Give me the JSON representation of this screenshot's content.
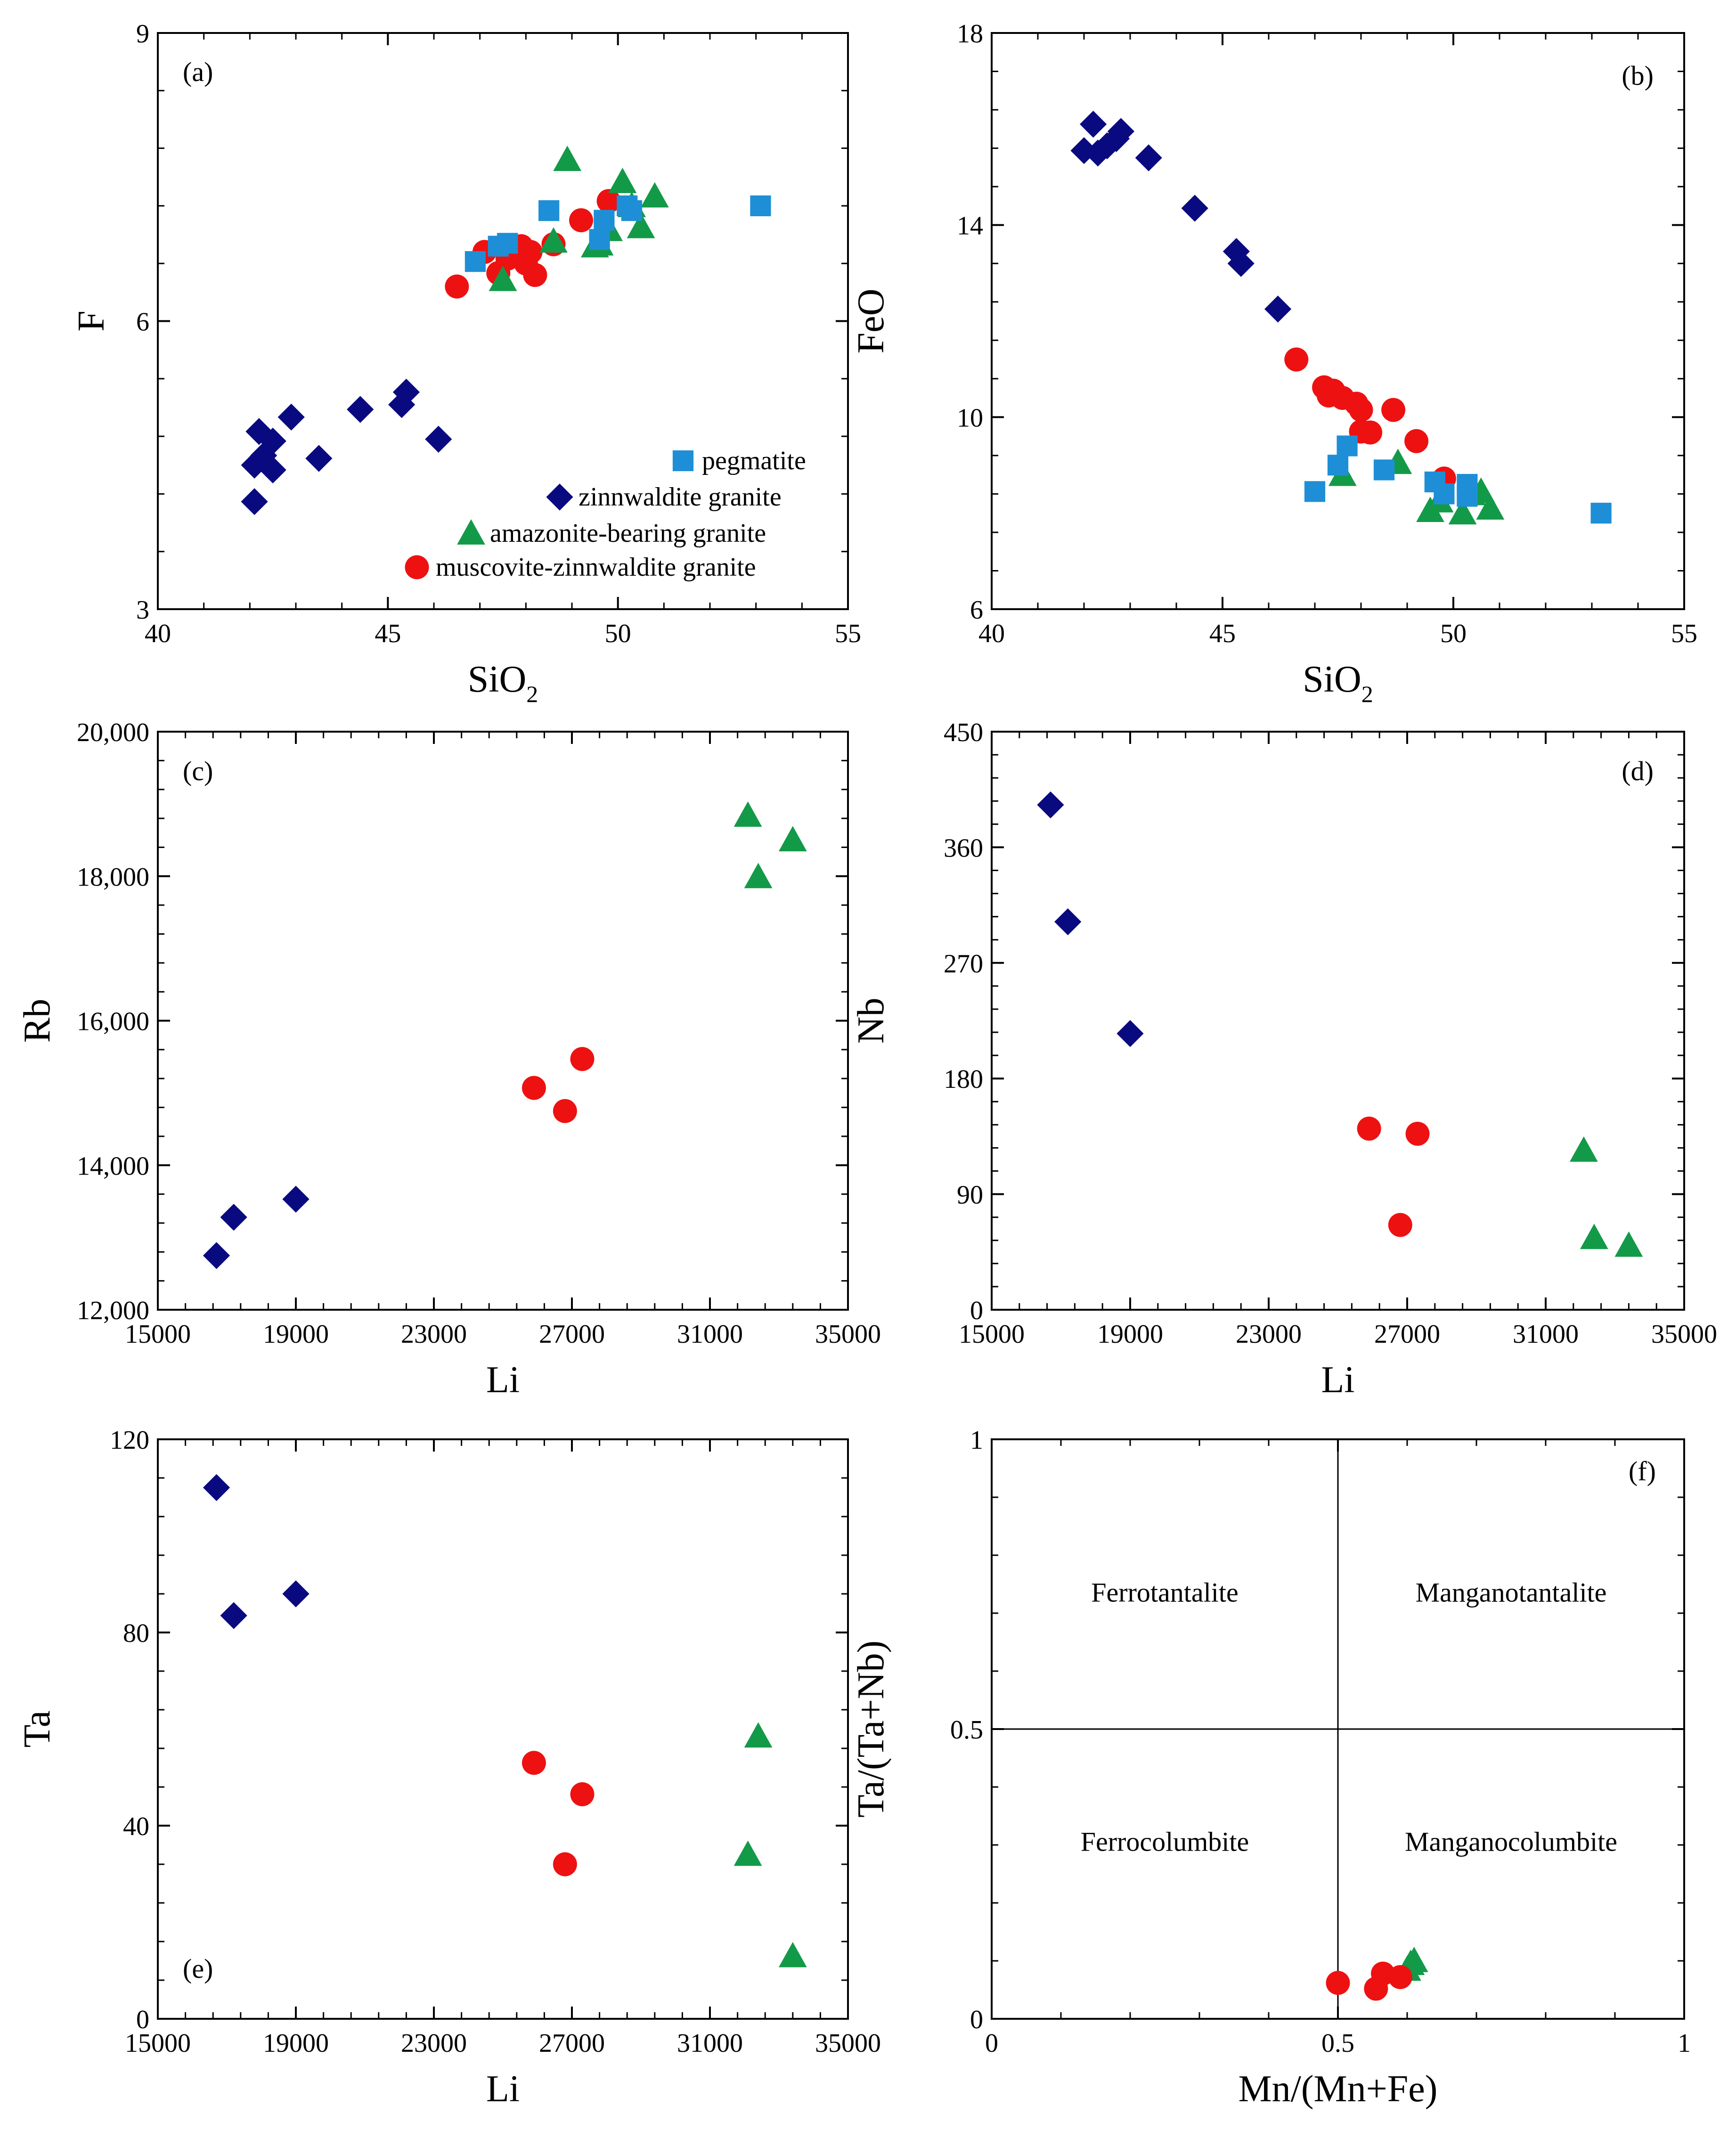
{
  "figure": {
    "legend": {
      "entries": [
        {
          "series": "pegmatite",
          "label": "pegmatite"
        },
        {
          "series": "zinnwaldite",
          "label": "zinnwaldite granite"
        },
        {
          "series": "amazonite",
          "label": "amazonite-bearing granite"
        },
        {
          "series": "muscovite",
          "label": "muscovite-zinnwaldite granite"
        }
      ]
    },
    "styles": {
      "pegmatite": {
        "marker": "square",
        "color": "#1e8fd6"
      },
      "zinnwaldite": {
        "marker": "diamond",
        "color": "#0a0a80"
      },
      "amazonite": {
        "marker": "triangle",
        "color": "#139a48"
      },
      "muscovite": {
        "marker": "circle",
        "color": "#ee1111"
      }
    }
  },
  "chart_data": [
    {
      "id": "a",
      "panel_label": "(a)",
      "type": "scatter",
      "xlabel": "SiO",
      "xlabel_sub": "2",
      "ylabel": "F",
      "xlim": [
        40,
        55
      ],
      "ylim": [
        3,
        9
      ],
      "xticks": [
        40,
        45,
        50,
        55
      ],
      "yticks": [
        3,
        6,
        9
      ],
      "xtick_labels": [
        "40",
        "45",
        "50",
        "55"
      ],
      "ytick_labels": [
        "3",
        "6",
        "9"
      ],
      "series": [
        {
          "name": "zinnwaldite",
          "points": [
            [
              42.1,
              4.12
            ],
            [
              42.1,
              4.5
            ],
            [
              42.2,
              4.85
            ],
            [
              42.3,
              4.6
            ],
            [
              42.5,
              4.75
            ],
            [
              42.5,
              4.45
            ],
            [
              42.9,
              5.0
            ],
            [
              43.5,
              4.57
            ],
            [
              44.4,
              5.08
            ],
            [
              45.3,
              5.13
            ],
            [
              45.4,
              5.26
            ],
            [
              46.1,
              4.77
            ]
          ]
        },
        {
          "name": "muscovite",
          "points": [
            [
              46.5,
              6.36
            ],
            [
              47.1,
              6.72
            ],
            [
              47.4,
              6.5
            ],
            [
              47.6,
              6.65
            ],
            [
              47.9,
              6.78
            ],
            [
              48.0,
              6.6
            ],
            [
              48.1,
              6.72
            ],
            [
              48.2,
              6.48
            ],
            [
              48.6,
              6.8
            ],
            [
              49.2,
              7.05
            ],
            [
              49.8,
              7.25
            ]
          ]
        },
        {
          "name": "amazonite",
          "points": [
            [
              47.5,
              6.43
            ],
            [
              48.6,
              6.83
            ],
            [
              48.9,
              7.68
            ],
            [
              49.5,
              6.78
            ],
            [
              49.6,
              6.8
            ],
            [
              49.8,
              6.95
            ],
            [
              50.1,
              7.45
            ],
            [
              50.3,
              7.2
            ],
            [
              50.5,
              6.98
            ],
            [
              50.8,
              7.3
            ]
          ]
        },
        {
          "name": "pegmatite",
          "points": [
            [
              46.9,
              6.62
            ],
            [
              47.4,
              6.78
            ],
            [
              47.6,
              6.81
            ],
            [
              48.5,
              7.15
            ],
            [
              49.6,
              6.85
            ],
            [
              49.7,
              7.05
            ],
            [
              50.2,
              7.2
            ],
            [
              50.3,
              7.15
            ],
            [
              53.1,
              7.2
            ]
          ]
        }
      ]
    },
    {
      "id": "b",
      "panel_label": "(b)",
      "type": "scatter",
      "xlabel": "SiO",
      "xlabel_sub": "2",
      "ylabel": "FeO",
      "xlim": [
        40,
        55
      ],
      "ylim": [
        6,
        18
      ],
      "xticks": [
        40,
        45,
        50,
        55
      ],
      "yticks": [
        6,
        10,
        14,
        18
      ],
      "xtick_labels": [
        "40",
        "45",
        "50",
        "55"
      ],
      "ytick_labels": [
        "6",
        "10",
        "14",
        "18"
      ],
      "series": [
        {
          "name": "zinnwaldite",
          "points": [
            [
              42.0,
              15.55
            ],
            [
              42.2,
              16.1
            ],
            [
              42.3,
              15.5
            ],
            [
              42.5,
              15.65
            ],
            [
              42.7,
              15.8
            ],
            [
              42.8,
              15.95
            ],
            [
              43.4,
              15.4
            ],
            [
              44.4,
              14.35
            ],
            [
              45.3,
              13.45
            ],
            [
              45.4,
              13.2
            ],
            [
              46.2,
              12.25
            ]
          ]
        },
        {
          "name": "muscovite",
          "points": [
            [
              46.6,
              11.2
            ],
            [
              47.2,
              10.62
            ],
            [
              47.3,
              10.45
            ],
            [
              47.4,
              10.55
            ],
            [
              47.6,
              10.4
            ],
            [
              47.9,
              10.28
            ],
            [
              48.0,
              9.7
            ],
            [
              48.0,
              10.15
            ],
            [
              48.2,
              9.68
            ],
            [
              48.7,
              10.15
            ],
            [
              49.2,
              9.5
            ],
            [
              49.8,
              8.72
            ]
          ]
        },
        {
          "name": "amazonite",
          "points": [
            [
              47.6,
              8.8
            ],
            [
              48.8,
              9.05
            ],
            [
              49.5,
              8.05
            ],
            [
              49.7,
              8.25
            ],
            [
              50.2,
              8.0
            ],
            [
              50.4,
              8.4
            ],
            [
              50.6,
              8.45
            ],
            [
              50.8,
              8.1
            ]
          ]
        },
        {
          "name": "pegmatite",
          "points": [
            [
              47.0,
              8.45
            ],
            [
              47.5,
              9.0
            ],
            [
              47.7,
              9.4
            ],
            [
              48.5,
              8.9
            ],
            [
              49.6,
              8.65
            ],
            [
              49.8,
              8.4
            ],
            [
              50.3,
              8.6
            ],
            [
              50.3,
              8.35
            ],
            [
              53.2,
              8.0
            ]
          ]
        }
      ]
    },
    {
      "id": "c",
      "panel_label": "(c)",
      "type": "scatter",
      "xlabel": "Li",
      "ylabel": "Rb",
      "xlim": [
        15000,
        35000
      ],
      "ylim": [
        12000,
        20000
      ],
      "xticks": [
        15000,
        19000,
        23000,
        27000,
        31000,
        35000
      ],
      "yticks": [
        12000,
        14000,
        16000,
        18000,
        20000
      ],
      "xtick_labels": [
        "15000",
        "19000",
        "23000",
        "27000",
        "31000",
        "35000"
      ],
      "ytick_labels": [
        "12,000",
        "14,000",
        "16,000",
        "18,000",
        "20,000"
      ],
      "series": [
        {
          "name": "zinnwaldite",
          "points": [
            [
              16700,
              12750
            ],
            [
              17200,
              13280
            ],
            [
              19000,
              13530
            ]
          ]
        },
        {
          "name": "muscovite",
          "points": [
            [
              25900,
              15070
            ],
            [
              26800,
              14750
            ],
            [
              27300,
              15470
            ]
          ]
        },
        {
          "name": "amazonite",
          "points": [
            [
              32100,
              18840
            ],
            [
              32400,
              17990
            ],
            [
              33400,
              18500
            ]
          ]
        }
      ]
    },
    {
      "id": "d",
      "panel_label": "(d)",
      "type": "scatter",
      "xlabel": "Li",
      "ylabel": "Nb",
      "xlim": [
        15000,
        35000
      ],
      "ylim": [
        0,
        450
      ],
      "xticks": [
        15000,
        19000,
        23000,
        27000,
        31000,
        35000
      ],
      "yticks": [
        0,
        90,
        180,
        270,
        360,
        450
      ],
      "xtick_labels": [
        "15000",
        "19000",
        "23000",
        "27000",
        "31000",
        "35000"
      ],
      "ytick_labels": [
        "0",
        "90",
        "180",
        "270",
        "360",
        "450"
      ],
      "series": [
        {
          "name": "zinnwaldite",
          "points": [
            [
              16700,
              393
            ],
            [
              17200,
              302
            ],
            [
              19000,
              215
            ]
          ]
        },
        {
          "name": "muscovite",
          "points": [
            [
              25900,
              141
            ],
            [
              26800,
              66
            ],
            [
              27300,
              137
            ]
          ]
        },
        {
          "name": "amazonite",
          "points": [
            [
              32100,
              124
            ],
            [
              32400,
              56
            ],
            [
              33400,
              50
            ]
          ]
        }
      ]
    },
    {
      "id": "e",
      "panel_label": "(e)",
      "type": "scatter",
      "xlabel": "Li",
      "ylabel": "Ta",
      "xlim": [
        15000,
        35000
      ],
      "ylim": [
        0,
        120
      ],
      "xticks": [
        15000,
        19000,
        23000,
        27000,
        31000,
        35000
      ],
      "yticks": [
        0,
        40,
        80,
        120
      ],
      "xtick_labels": [
        "15000",
        "19000",
        "23000",
        "27000",
        "31000",
        "35000"
      ],
      "ytick_labels": [
        "0",
        "40",
        "80",
        "120"
      ],
      "series": [
        {
          "name": "zinnwaldite",
          "points": [
            [
              16700,
              110
            ],
            [
              17200,
              83.5
            ],
            [
              19000,
              88
            ]
          ]
        },
        {
          "name": "muscovite",
          "points": [
            [
              25900,
              53
            ],
            [
              26800,
              32
            ],
            [
              27300,
              46.5
            ]
          ]
        },
        {
          "name": "amazonite",
          "points": [
            [
              32100,
              34
            ],
            [
              32400,
              58.5
            ],
            [
              33400,
              13
            ]
          ]
        }
      ]
    },
    {
      "id": "f",
      "panel_label": "(f)",
      "type": "scatter",
      "xlabel": "Mn/(Mn+Fe)",
      "ylabel": "Ta/(Ta+Nb)",
      "xlim": [
        0,
        1
      ],
      "ylim": [
        0,
        1
      ],
      "xticks": [
        0,
        0.5,
        1
      ],
      "yticks": [
        0,
        0.5,
        1
      ],
      "xtick_labels": [
        "0",
        "0.5",
        "1"
      ],
      "ytick_labels": [
        "0",
        "0.5",
        "1"
      ],
      "divider_x": 0.5,
      "divider_y": 0.5,
      "regions": [
        {
          "text": "Ferrotantalite",
          "x": 0.25,
          "y": 0.72
        },
        {
          "text": "Manganotantalite",
          "x": 0.75,
          "y": 0.72
        },
        {
          "text": "Ferrocolumbite",
          "x": 0.25,
          "y": 0.29
        },
        {
          "text": "Manganocolumbite",
          "x": 0.75,
          "y": 0.29
        }
      ],
      "series": [
        {
          "name": "amazonite",
          "points": [
            [
              0.6,
              0.085
            ],
            [
              0.605,
              0.095
            ],
            [
              0.61,
              0.1
            ]
          ]
        },
        {
          "name": "muscovite",
          "points": [
            [
              0.5,
              0.062
            ],
            [
              0.555,
              0.052
            ],
            [
              0.565,
              0.078
            ],
            [
              0.59,
              0.072
            ]
          ]
        }
      ]
    }
  ]
}
